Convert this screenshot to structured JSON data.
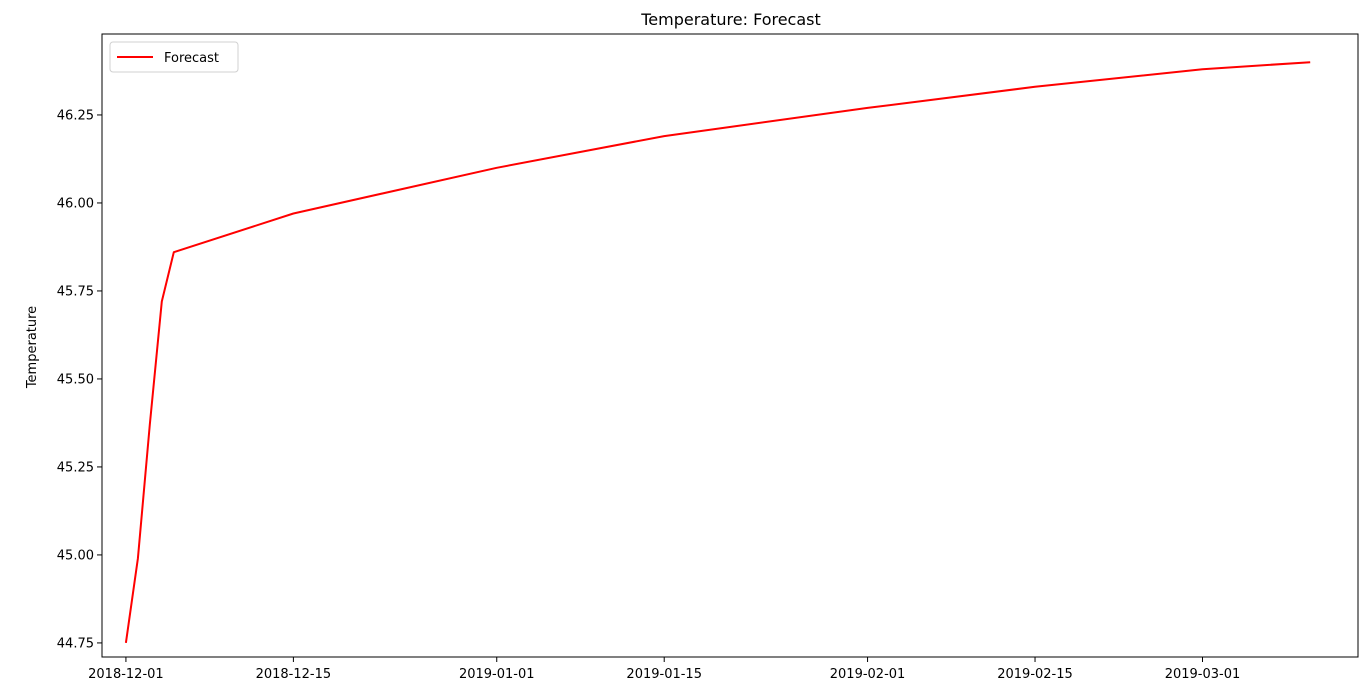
{
  "chart_data": {
    "type": "line",
    "title": "Temperature: Forecast",
    "xlabel": "",
    "ylabel": "Temperature",
    "x_axis": {
      "kind": "date",
      "range": [
        "2018-11-29",
        "2019-03-14"
      ],
      "ticks": [
        "2018-12-01",
        "2018-12-15",
        "2019-01-01",
        "2019-01-15",
        "2019-02-01",
        "2019-02-15",
        "2019-03-01"
      ]
    },
    "y_axis": {
      "range": [
        44.71,
        46.48
      ],
      "ticks": [
        44.75,
        45.0,
        45.25,
        45.5,
        45.75,
        46.0,
        46.25
      ],
      "tick_labels": [
        "44.75",
        "45.00",
        "45.25",
        "45.50",
        "45.75",
        "46.00",
        "46.25"
      ]
    },
    "grid": false,
    "legend": {
      "placement": "top-left",
      "entries": [
        "Forecast"
      ]
    },
    "series": [
      {
        "name": "Forecast",
        "color": "#ff0000",
        "x": [
          "2018-12-01",
          "2018-12-02",
          "2018-12-03",
          "2018-12-04",
          "2018-12-05",
          "2018-12-15",
          "2019-01-01",
          "2019-01-15",
          "2019-02-01",
          "2019-02-15",
          "2019-03-01",
          "2019-03-10"
        ],
        "values": [
          44.75,
          44.99,
          45.37,
          45.72,
          45.86,
          45.97,
          46.1,
          46.19,
          46.27,
          46.33,
          46.38,
          46.4
        ]
      }
    ]
  }
}
